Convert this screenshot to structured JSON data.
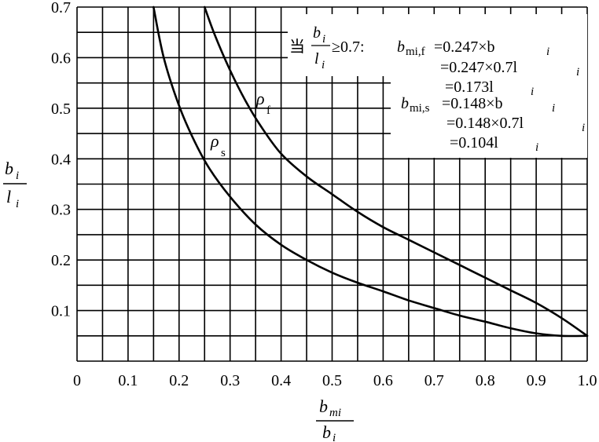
{
  "chart_data": {
    "type": "line",
    "xlim": [
      0,
      1.0
    ],
    "ylim": [
      0,
      0.7
    ],
    "grid": true,
    "x_ticks": [
      "0",
      "0.1",
      "0.2",
      "0.3",
      "0.4",
      "0.5",
      "0.6",
      "0.7",
      "0.8",
      "0.9",
      "1.0"
    ],
    "y_ticks": [
      "0.1",
      "0.2",
      "0.3",
      "0.4",
      "0.5",
      "0.6",
      "0.7"
    ],
    "xlabel": {
      "numerator": "b",
      "numerator_sub": "mi",
      "denominator": "b",
      "denominator_sub": "i"
    },
    "ylabel": {
      "numerator": "b",
      "numerator_sub": "i",
      "denominator": "l",
      "denominator_sub": "i"
    },
    "series": [
      {
        "name": "ρ",
        "name_sub": "f",
        "x": [
          0.25,
          0.27,
          0.3,
          0.33,
          0.36,
          0.4,
          0.45,
          0.5,
          0.55,
          0.6,
          0.65,
          0.7,
          0.75,
          0.8,
          0.85,
          0.9,
          0.95,
          1.0
        ],
        "y": [
          0.7,
          0.645,
          0.575,
          0.515,
          0.465,
          0.41,
          0.365,
          0.33,
          0.295,
          0.265,
          0.24,
          0.215,
          0.19,
          0.165,
          0.14,
          0.115,
          0.085,
          0.05
        ]
      },
      {
        "name": "ρ",
        "name_sub": "s",
        "x": [
          0.15,
          0.17,
          0.2,
          0.23,
          0.26,
          0.3,
          0.35,
          0.4,
          0.45,
          0.5,
          0.55,
          0.6,
          0.65,
          0.7,
          0.75,
          0.8,
          0.85,
          0.9,
          0.95,
          1.0
        ],
        "y": [
          0.7,
          0.6,
          0.505,
          0.435,
          0.38,
          0.325,
          0.27,
          0.23,
          0.2,
          0.175,
          0.155,
          0.138,
          0.12,
          0.105,
          0.09,
          0.078,
          0.065,
          0.055,
          0.05,
          0.05
        ]
      }
    ],
    "annotation": {
      "prefix": "当",
      "frac_num": "b",
      "frac_num_sub": "i",
      "frac_den": "l",
      "frac_den_sub": "i",
      "condition": "≥0.7:",
      "f_label": "b",
      "f_label_sub": "mi,f",
      "f_lines": [
        "=0.247×b",
        "=0.247×0.7l",
        "=0.173l"
      ],
      "f_line_subs": [
        "i",
        "i",
        "i"
      ],
      "s_label": "b",
      "s_label_sub": "mi,s",
      "s_lines": [
        "=0.148×b",
        "=0.148×0.7l",
        "=0.104l"
      ],
      "s_line_subs": [
        "i",
        "i",
        "i"
      ]
    }
  }
}
